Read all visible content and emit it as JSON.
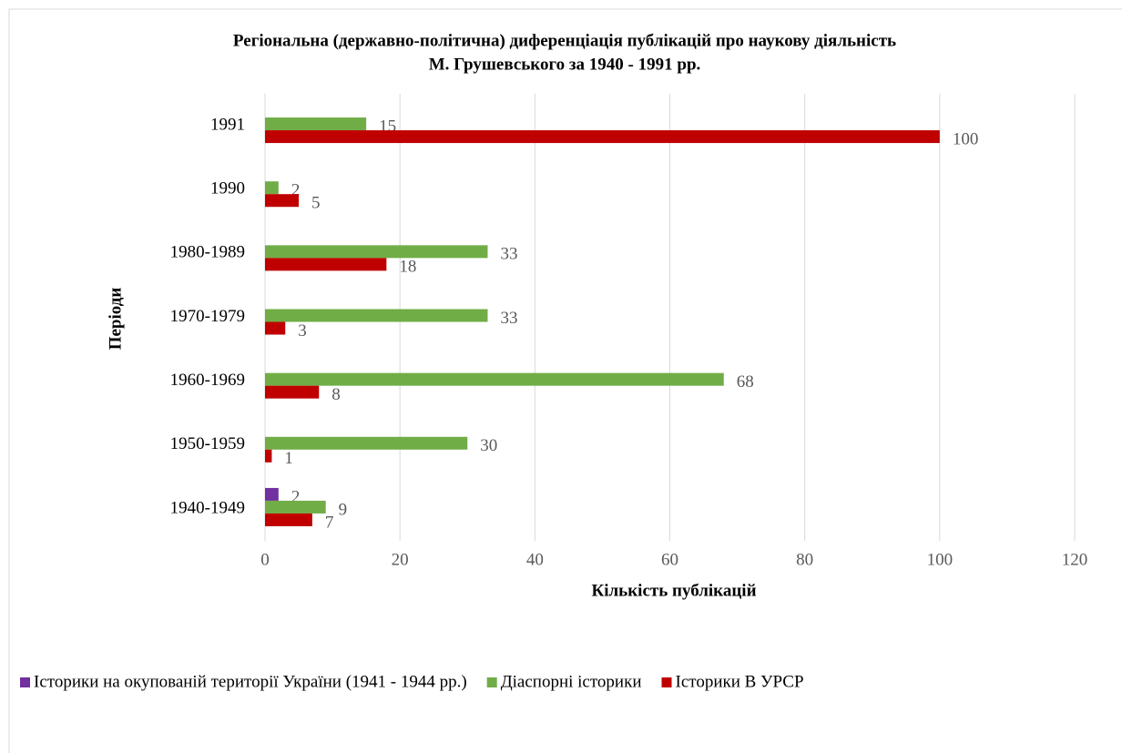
{
  "chart_data": {
    "type": "hbar",
    "title": [
      "Регіональна (державно-політична) диференціація публікацій про наукову діяльність",
      "М. Грушевського за 1940 - 1991 рр."
    ],
    "xlabel": "Кількість публікацій",
    "ylabel": "Періоди",
    "categories": [
      "1940-1949",
      "1950-1959",
      "1960-1969",
      "1970-1979",
      "1980-1989",
      "1990",
      "1991"
    ],
    "series": [
      {
        "name": "Історики на окупованій території України (1941 - 1944 рр.)",
        "color": "#7030a0",
        "values": [
          2,
          null,
          null,
          null,
          null,
          null,
          null
        ]
      },
      {
        "name": "Діаспорні історики",
        "color": "#70ad47",
        "values": [
          9,
          30,
          68,
          33,
          33,
          2,
          15
        ]
      },
      {
        "name": "Історики В УРСР",
        "color": "#c00000",
        "values": [
          7,
          1,
          8,
          3,
          18,
          5,
          100
        ]
      }
    ],
    "xlim": [
      0,
      120
    ],
    "xticks": [
      0,
      20,
      40,
      60,
      80,
      100,
      120
    ],
    "grid": true,
    "legend": "bottom"
  }
}
